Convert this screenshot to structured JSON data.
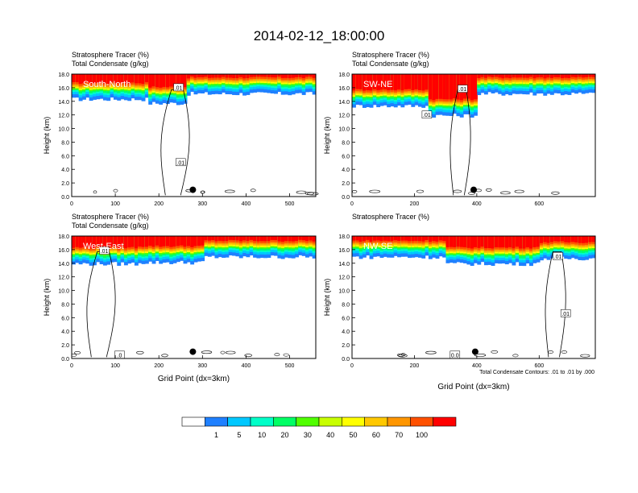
{
  "figure": {
    "title": "2014-02-12_18:00:00",
    "footnote": "Total Condensate Contours: .01 to .01 by .000",
    "colorbar": {
      "colors": [
        "#ffffff",
        "#1f80ff",
        "#00c8ff",
        "#00ffc8",
        "#00ff64",
        "#50ff00",
        "#c8ff00",
        "#ffff00",
        "#ffc800",
        "#ff9600",
        "#ff5000",
        "#ff0000"
      ],
      "labels": [
        "1",
        "5",
        "10",
        "20",
        "30",
        "40",
        "50",
        "60",
        "70",
        "100"
      ]
    }
  },
  "chart_data": [
    {
      "type": "heatmap",
      "panel_label": "South-North",
      "title_lines": [
        "Stratosphere Tracer   (%)",
        "Total Condensate   (g/kg)"
      ],
      "xlabel": "",
      "ylabel": "Height (km)",
      "xlim": [
        0,
        560
      ],
      "ylim": [
        0,
        18
      ],
      "xticks": [
        0,
        100,
        200,
        300,
        400,
        500
      ],
      "yticks": [
        0,
        2,
        4,
        6,
        8,
        10,
        12,
        14,
        16,
        18
      ],
      "contour_labels": [
        {
          "text": ".01",
          "x": 245,
          "y": 16.0
        },
        {
          "text": ".01",
          "x": 250,
          "y": 5.0
        }
      ],
      "marker": {
        "x": 278,
        "y": 1.0
      },
      "bands": [
        {
          "x": [
            0,
            175
          ],
          "z": 14.8
        },
        {
          "x": [
            175,
            260
          ],
          "z": 14.2
        },
        {
          "x": [
            260,
            560
          ],
          "z": 15.6
        }
      ]
    },
    {
      "type": "heatmap",
      "panel_label": "SW-NE",
      "title_lines": [
        "Stratosphere Tracer   (%)",
        "Total Condensate   (g/kg)"
      ],
      "xlabel": "",
      "ylabel": "Height (km)",
      "xlim": [
        0,
        780
      ],
      "ylim": [
        0,
        18
      ],
      "xticks": [
        0,
        200,
        400,
        600
      ],
      "yticks": [
        0,
        2,
        4,
        6,
        8,
        10,
        12,
        14,
        16,
        18
      ],
      "contour_labels": [
        {
          "text": ".01",
          "x": 355,
          "y": 15.8
        },
        {
          "text": ".01",
          "x": 240,
          "y": 12.0
        }
      ],
      "marker": {
        "x": 390,
        "y": 1.0
      },
      "bands": [
        {
          "x": [
            0,
            240
          ],
          "z": 13.8
        },
        {
          "x": [
            240,
            400
          ],
          "z": 12.4
        },
        {
          "x": [
            400,
            780
          ],
          "z": 15.6
        }
      ]
    },
    {
      "type": "heatmap",
      "panel_label": "West-East",
      "title_lines": [
        "Stratosphere Tracer   (%)",
        "Total Condensate   (g/kg)"
      ],
      "xlabel": "Grid Point (dx=3km)",
      "ylabel": "Height (km)",
      "xlim": [
        0,
        560
      ],
      "ylim": [
        0,
        18
      ],
      "xticks": [
        0,
        100,
        200,
        300,
        400,
        500
      ],
      "yticks": [
        0,
        2,
        4,
        6,
        8,
        10,
        12,
        14,
        16,
        18
      ],
      "contour_labels": [
        {
          "text": ".01",
          "x": 75,
          "y": 15.8
        },
        {
          "text": ".0",
          "x": 110,
          "y": 0.5
        }
      ],
      "marker": {
        "x": 278,
        "y": 1.0
      },
      "bands": [
        {
          "x": [
            0,
            150
          ],
          "z": 14.4
        },
        {
          "x": [
            150,
            300
          ],
          "z": 14.6
        },
        {
          "x": [
            300,
            560
          ],
          "z": 15.4
        }
      ]
    },
    {
      "type": "heatmap",
      "panel_label": "NW-SE",
      "title_lines": [
        "Stratosphere Tracer   (%)"
      ],
      "xlabel": "Grid Point (dx=3km)",
      "ylabel": "Height (km)",
      "xlim": [
        0,
        780
      ],
      "ylim": [
        0,
        18
      ],
      "xticks": [
        0,
        200,
        400,
        600
      ],
      "yticks": [
        0,
        2,
        4,
        6,
        8,
        10,
        12,
        14,
        16,
        18
      ],
      "contour_labels": [
        {
          "text": ".01",
          "x": 660,
          "y": 15.0
        },
        {
          "text": ".01",
          "x": 685,
          "y": 6.6
        },
        {
          "text": "0.0",
          "x": 330,
          "y": 0.5
        }
      ],
      "marker": {
        "x": 395,
        "y": 1.0
      },
      "bands": [
        {
          "x": [
            0,
            300
          ],
          "z": 15.4
        },
        {
          "x": [
            300,
            600
          ],
          "z": 14.4
        },
        {
          "x": [
            600,
            780
          ],
          "z": 15.2
        }
      ]
    }
  ]
}
